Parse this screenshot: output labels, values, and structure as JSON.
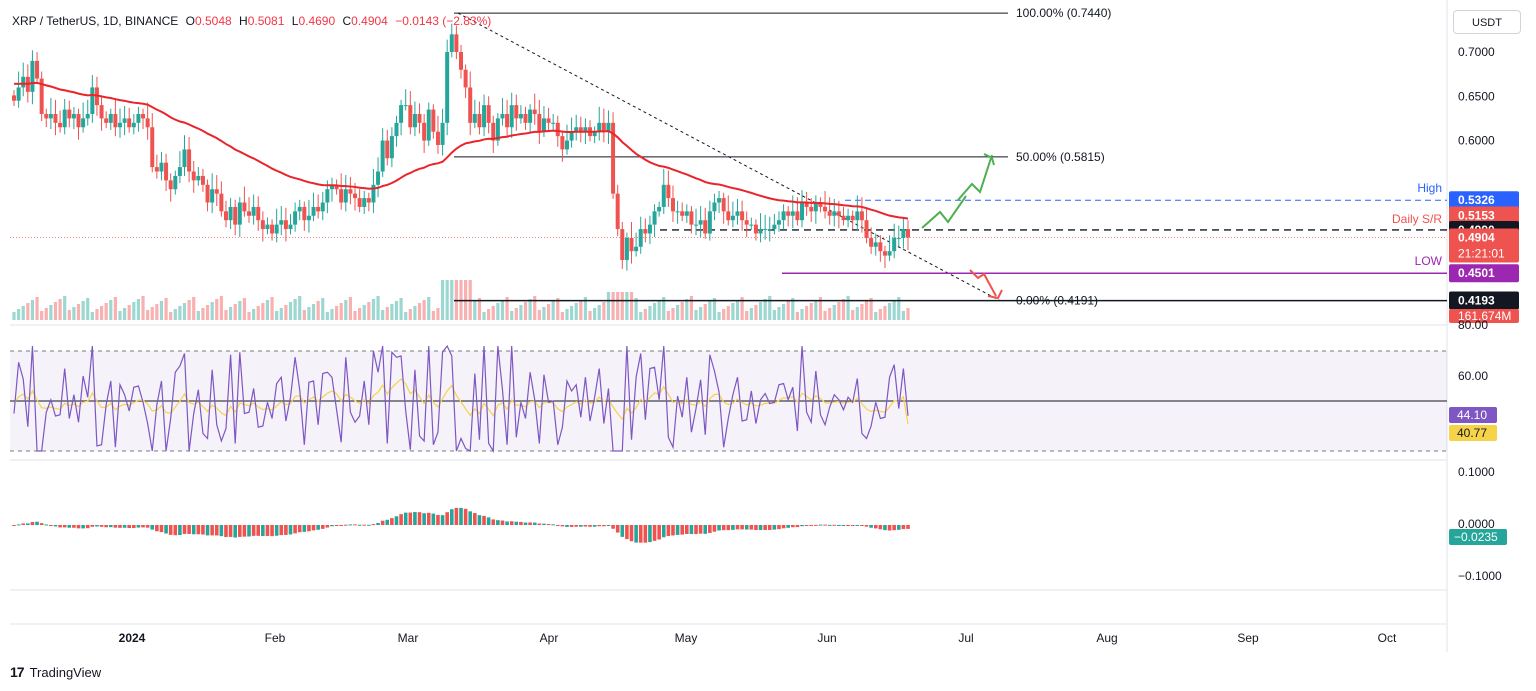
{
  "header": {
    "symbol": "XRP / TetherUS, 1D, BINANCE",
    "o_label": "O",
    "o": "0.5048",
    "h_label": "H",
    "h": "0.5081",
    "l_label": "L",
    "l": "0.4690",
    "c_label": "C",
    "c": "0.4904",
    "change": "−0.0143 (−2.83%)"
  },
  "currency": "USDT",
  "brand": {
    "logo": "17",
    "name": "TradingView"
  },
  "colors": {
    "up": "#26a69a",
    "down": "#ef5350",
    "ema": "#e9242b",
    "rsi": "#7e57c2",
    "rsi_ma": "#f7d34a",
    "high": "#2962ff",
    "low": "#9c27b0",
    "green_arrow": "#4caf50"
  },
  "chart_data": [
    {
      "type": "candlestick",
      "title": "XRP / TetherUS, 1D, BINANCE",
      "x_ticks": [
        "2024",
        "Feb",
        "Mar",
        "Apr",
        "May",
        "Jun",
        "Jul",
        "Aug",
        "Sep",
        "Oct"
      ],
      "y_ticks": [
        "0.7000",
        "0.6500",
        "0.6000"
      ],
      "ylim": [
        0.395,
        0.752
      ],
      "fib_levels": [
        {
          "label": "100.00% (0.7440)",
          "value": 0.744
        },
        {
          "label": "50.00% (0.5815)",
          "value": 0.5815
        },
        {
          "label": "0.00% (0.4191)",
          "value": 0.4191
        }
      ],
      "annotations": [
        {
          "label": "High",
          "value": 0.5326,
          "tag": "0.5326"
        },
        {
          "label": "",
          "value": 0.5153,
          "tag": "0.5153"
        },
        {
          "label": "Daily S/R",
          "value": 0.499,
          "tag": "0.4990"
        },
        {
          "label": "",
          "value": 0.4904,
          "tag": "0.4904",
          "sub": "21:21:01"
        },
        {
          "label": "LOW",
          "value": 0.4501,
          "tag": "0.4501"
        },
        {
          "label": "",
          "value": 0.4193,
          "tag": "0.4193"
        }
      ],
      "volume_label": "161.674M",
      "ema_last": 0.5153,
      "candles_close": [
        0.645,
        0.66,
        0.672,
        0.655,
        0.69,
        0.67,
        0.63,
        0.625,
        0.63,
        0.62,
        0.615,
        0.635,
        0.625,
        0.63,
        0.615,
        0.625,
        0.63,
        0.66,
        0.64,
        0.625,
        0.62,
        0.63,
        0.615,
        0.62,
        0.625,
        0.615,
        0.62,
        0.63,
        0.625,
        0.615,
        0.57,
        0.565,
        0.575,
        0.555,
        0.545,
        0.56,
        0.57,
        0.59,
        0.565,
        0.555,
        0.56,
        0.55,
        0.53,
        0.545,
        0.54,
        0.52,
        0.51,
        0.525,
        0.505,
        0.53,
        0.52,
        0.515,
        0.525,
        0.51,
        0.5,
        0.505,
        0.495,
        0.505,
        0.51,
        0.5,
        0.505,
        0.52,
        0.525,
        0.51,
        0.515,
        0.525,
        0.52,
        0.53,
        0.545,
        0.55,
        0.545,
        0.53,
        0.545,
        0.54,
        0.535,
        0.525,
        0.535,
        0.53,
        0.55,
        0.565,
        0.6,
        0.58,
        0.605,
        0.62,
        0.64,
        0.64,
        0.615,
        0.63,
        0.62,
        0.6,
        0.635,
        0.61,
        0.595,
        0.62,
        0.7,
        0.72,
        0.7,
        0.68,
        0.66,
        0.62,
        0.63,
        0.615,
        0.64,
        0.62,
        0.6,
        0.625,
        0.63,
        0.615,
        0.64,
        0.625,
        0.63,
        0.62,
        0.635,
        0.63,
        0.61,
        0.625,
        0.62,
        0.62,
        0.605,
        0.59,
        0.6,
        0.61,
        0.615,
        0.61,
        0.615,
        0.605,
        0.61,
        0.62,
        0.61,
        0.62,
        0.54,
        0.5,
        0.465,
        0.49,
        0.475,
        0.48,
        0.5,
        0.495,
        0.505,
        0.52,
        0.525,
        0.55,
        0.535,
        0.52,
        0.52,
        0.515,
        0.52,
        0.505,
        0.505,
        0.51,
        0.495,
        0.52,
        0.53,
        0.535,
        0.52,
        0.51,
        0.515,
        0.52,
        0.51,
        0.505,
        0.505,
        0.495,
        0.5,
        0.5,
        0.5,
        0.505,
        0.51,
        0.52,
        0.515,
        0.52,
        0.51,
        0.53,
        0.525,
        0.52,
        0.53,
        0.525,
        0.52,
        0.515,
        0.52,
        0.515,
        0.51,
        0.515,
        0.51,
        0.52,
        0.51,
        0.49,
        0.48,
        0.485,
        0.475,
        0.47,
        0.475,
        0.49,
        0.49,
        0.5,
        0.4904
      ],
      "macd_last": "−0.0235",
      "macd_ticks": [
        "0.1000",
        "0.0000",
        "−0.1000"
      ],
      "rsi_ticks": [
        "80.00",
        "60.00"
      ],
      "rsi_last": "44.10",
      "rsi_ma_last": "40.77"
    }
  ]
}
